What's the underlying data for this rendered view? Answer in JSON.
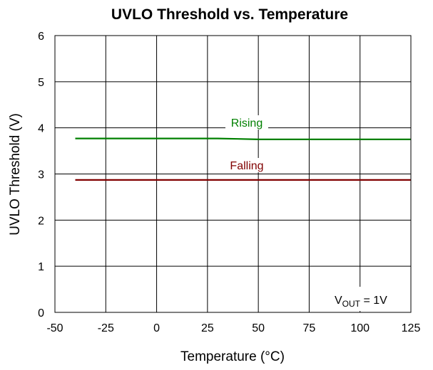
{
  "chart_data": {
    "type": "line",
    "title": "UVLO Threshold vs. Temperature",
    "xlabel": "Temperature (°C)",
    "ylabel": "UVLO Threshold (V)",
    "xlim": [
      -50,
      125
    ],
    "ylim": [
      0,
      6
    ],
    "xticks": [
      -50,
      -25,
      0,
      25,
      50,
      75,
      100,
      125
    ],
    "yticks": [
      0,
      1,
      2,
      3,
      4,
      5,
      6
    ],
    "grid": true,
    "series": [
      {
        "name": "Rising",
        "color": "#008000",
        "x": [
          -40,
          -25,
          0,
          25,
          30,
          40,
          50,
          75,
          100,
          125
        ],
        "y": [
          3.77,
          3.77,
          3.77,
          3.77,
          3.77,
          3.76,
          3.75,
          3.75,
          3.75,
          3.75
        ]
      },
      {
        "name": "Falling",
        "color": "#800000",
        "x": [
          -40,
          -25,
          0,
          25,
          50,
          75,
          100,
          125
        ],
        "y": [
          2.87,
          2.87,
          2.87,
          2.87,
          2.87,
          2.87,
          2.87,
          2.87
        ]
      }
    ],
    "annotations": [
      {
        "text": "V",
        "sub": "OUT",
        "rest": " = 1V"
      }
    ]
  }
}
